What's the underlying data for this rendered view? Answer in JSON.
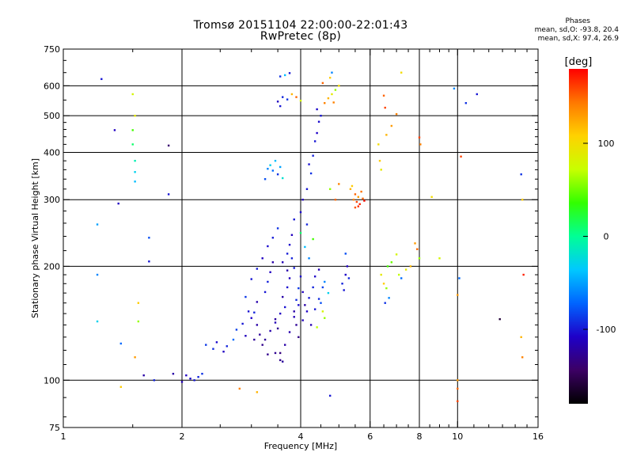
{
  "title_line1": "Tromsø 20151104 22:00:00-22:01:43",
  "title_line2": "RwPretec (8p)",
  "phase_stats": {
    "header": "Phases",
    "line_o": "mean, sd,O: -93.8, 20.4",
    "line_x": "mean, sd,X:  97.4, 26.9"
  },
  "chart_data": {
    "type": "scatter",
    "title": "Tromsø 20151104 22:00:00-22:01:43",
    "subtitle": "RwPretec (8p)",
    "xlabel": "Frequency [MHz]",
    "ylabel": "Stationary phase Virtual Height [km]",
    "xscale": "log",
    "yscale": "log",
    "xlim": [
      1,
      16
    ],
    "ylim": [
      75,
      750
    ],
    "x_ticks": [
      1,
      2,
      4,
      6,
      8,
      10,
      16
    ],
    "y_ticks": [
      75,
      100,
      200,
      300,
      400,
      500,
      600,
      750
    ],
    "grid": true,
    "grid_x": [
      2,
      4,
      6,
      8,
      10
    ],
    "grid_y": [
      100,
      200,
      300,
      400,
      500,
      600
    ],
    "colorbar": {
      "label": "[deg]",
      "range": [
        -180,
        180
      ],
      "ticks": [
        -100,
        0,
        100
      ],
      "colormap": [
        "#000000",
        "#3c0064",
        "#1e00c8",
        "#0064ff",
        "#00c8ff",
        "#00ff96",
        "#32ff00",
        "#c8ff00",
        "#ffd200",
        "#ff7800",
        "#ff0000"
      ]
    },
    "series": [
      {
        "points": [
          [
            2.05,
            103,
            -110
          ],
          [
            2.1,
            101,
            -105
          ],
          [
            2.15,
            100,
            -100
          ],
          [
            2.2,
            102,
            -95
          ],
          [
            1.9,
            104,
            -120
          ],
          [
            2.0,
            99,
            -115
          ],
          [
            2.25,
            104,
            -90
          ],
          [
            2.3,
            124,
            -88
          ],
          [
            2.4,
            121,
            -92
          ],
          [
            2.45,
            126,
            -105
          ],
          [
            2.55,
            119,
            -110
          ],
          [
            2.6,
            123,
            -95
          ],
          [
            2.7,
            128,
            -70
          ],
          [
            2.75,
            136,
            -85
          ],
          [
            2.85,
            141,
            -100
          ],
          [
            2.9,
            131,
            -112
          ],
          [
            3.0,
            146,
            -108
          ],
          [
            3.05,
            151,
            -95
          ],
          [
            3.1,
            161,
            -118
          ],
          [
            3.15,
            132,
            -125
          ],
          [
            3.2,
            124,
            -130
          ],
          [
            3.25,
            171,
            -100
          ],
          [
            3.3,
            182,
            -96
          ],
          [
            3.35,
            193,
            -110
          ],
          [
            3.4,
            205,
            -120
          ],
          [
            3.45,
            142,
            -115
          ],
          [
            3.5,
            137,
            -128
          ],
          [
            3.55,
            118,
            -135
          ],
          [
            3.6,
            112,
            -124
          ],
          [
            3.65,
            156,
            -102
          ],
          [
            3.7,
            216,
            -98
          ],
          [
            3.75,
            228,
            -106
          ],
          [
            3.8,
            242,
            -112
          ],
          [
            3.85,
            152,
            -120
          ],
          [
            3.9,
            163,
            -93
          ],
          [
            3.95,
            175,
            -88
          ],
          [
            4.0,
            188,
            -104
          ],
          [
            4.05,
            171,
            -110
          ],
          [
            4.1,
            158,
            -120
          ],
          [
            4.2,
            165,
            -100
          ],
          [
            4.3,
            176,
            -95
          ],
          [
            4.35,
            188,
            -108
          ],
          [
            4.45,
            196,
            -115
          ],
          [
            4.5,
            160,
            -80
          ],
          [
            3.25,
            128,
            -125
          ],
          [
            3.3,
            117,
            -130
          ],
          [
            3.35,
            135,
            -118
          ],
          [
            3.45,
            145,
            -122
          ],
          [
            3.55,
            150,
            -110
          ],
          [
            3.6,
            166,
            -120
          ],
          [
            3.7,
            176,
            -104
          ],
          [
            3.75,
            186,
            -112
          ],
          [
            3.85,
            198,
            -98
          ],
          [
            3.9,
            140,
            -126
          ],
          [
            3.95,
            130,
            -132
          ],
          [
            3.1,
            140,
            -120
          ],
          [
            3.05,
            128,
            -125
          ],
          [
            2.95,
            152,
            -102
          ],
          [
            2.9,
            166,
            -88
          ],
          [
            3.0,
            185,
            -100
          ],
          [
            3.1,
            197,
            -98
          ],
          [
            3.2,
            210,
            -110
          ],
          [
            3.3,
            226,
            -104
          ],
          [
            3.4,
            238,
            -98
          ],
          [
            3.5,
            252,
            -90
          ],
          [
            3.6,
            205,
            -115
          ],
          [
            3.7,
            195,
            -118
          ],
          [
            3.8,
            210,
            -96
          ],
          [
            3.45,
            118,
            -128
          ],
          [
            3.55,
            113,
            -130
          ],
          [
            3.65,
            124,
            -120
          ],
          [
            3.75,
            134,
            -118
          ],
          [
            3.85,
            147,
            -114
          ],
          [
            3.95,
            158,
            -104
          ],
          [
            4.05,
            144,
            -112
          ],
          [
            4.15,
            152,
            -108
          ],
          [
            4.25,
            140,
            -116
          ],
          [
            4.35,
            154,
            -100
          ],
          [
            4.45,
            164,
            -92
          ],
          [
            4.55,
            176,
            -84
          ],
          [
            4.6,
            182,
            -60
          ],
          [
            4.7,
            170,
            -30
          ],
          [
            4.55,
            152,
            80
          ],
          [
            4.6,
            146,
            60
          ],
          [
            4.4,
            138,
            70
          ],
          [
            5.1,
            180,
            -95
          ],
          [
            5.15,
            173,
            -100
          ],
          [
            5.2,
            190,
            -108
          ],
          [
            5.25,
            200,
            -110
          ],
          [
            5.3,
            186,
            -94
          ],
          [
            5.2,
            216,
            -80
          ],
          [
            4.2,
            210,
            -60
          ],
          [
            4.1,
            225,
            -40
          ],
          [
            4.3,
            236,
            40
          ],
          [
            4.0,
            245,
            10
          ],
          [
            4.15,
            258,
            -95
          ],
          [
            3.85,
            266,
            -100
          ],
          [
            4.0,
            278,
            -105
          ],
          [
            4.05,
            300,
            -110
          ],
          [
            4.15,
            320,
            -100
          ],
          [
            4.25,
            352,
            -90
          ],
          [
            4.2,
            372,
            -102
          ],
          [
            4.3,
            392,
            -96
          ],
          [
            4.35,
            428,
            -100
          ],
          [
            4.4,
            450,
            -108
          ],
          [
            4.45,
            482,
            -104
          ],
          [
            4.5,
            500,
            -100
          ],
          [
            4.4,
            520,
            -106
          ],
          [
            4.6,
            540,
            140
          ],
          [
            4.7,
            556,
            120
          ],
          [
            4.8,
            570,
            90
          ],
          [
            4.9,
            585,
            60
          ],
          [
            5.0,
            600,
            100
          ],
          [
            4.55,
            610,
            150
          ],
          [
            4.75,
            630,
            110
          ],
          [
            4.8,
            650,
            -60
          ],
          [
            3.5,
            545,
            -110
          ],
          [
            3.55,
            530,
            -100
          ],
          [
            3.6,
            560,
            -95
          ],
          [
            3.7,
            552,
            -90
          ],
          [
            3.8,
            570,
            120
          ],
          [
            3.9,
            560,
            150
          ],
          [
            4.0,
            548,
            80
          ],
          [
            3.65,
            640,
            -40
          ],
          [
            3.75,
            648,
            -100
          ],
          [
            3.55,
            635,
            -90
          ],
          [
            4.85,
            542,
            140
          ],
          [
            3.3,
            362,
            -60
          ],
          [
            3.35,
            370,
            -30
          ],
          [
            3.4,
            358,
            -70
          ],
          [
            3.45,
            380,
            -40
          ],
          [
            3.5,
            350,
            -90
          ],
          [
            3.55,
            366,
            -50
          ],
          [
            3.25,
            340,
            -80
          ],
          [
            3.6,
            342,
            -20
          ],
          [
            5.45,
            300,
            140
          ],
          [
            5.5,
            310,
            150
          ],
          [
            5.55,
            296,
            160
          ],
          [
            5.6,
            305,
            130
          ],
          [
            5.65,
            292,
            170
          ],
          [
            5.7,
            315,
            145
          ],
          [
            5.35,
            320,
            120
          ],
          [
            5.4,
            326,
            110
          ],
          [
            5.6,
            288,
            165
          ],
          [
            5.5,
            286,
            155
          ],
          [
            5.75,
            302,
            150
          ],
          [
            5.8,
            298,
            175
          ],
          [
            4.75,
            320,
            60
          ],
          [
            4.9,
            300,
            150
          ],
          [
            5.0,
            330,
            140
          ],
          [
            6.4,
            190,
            90
          ],
          [
            6.5,
            180,
            110
          ],
          [
            6.6,
            175,
            60
          ],
          [
            6.7,
            165,
            -60
          ],
          [
            6.55,
            160,
            -90
          ],
          [
            6.65,
            200,
            40
          ],
          [
            6.8,
            205,
            50
          ],
          [
            7.0,
            215,
            80
          ],
          [
            7.1,
            190,
            70
          ],
          [
            7.2,
            186,
            -70
          ],
          [
            7.4,
            196,
            90
          ],
          [
            7.6,
            200,
            120
          ],
          [
            7.8,
            230,
            130
          ],
          [
            7.9,
            222,
            150
          ],
          [
            8.0,
            210,
            60
          ],
          [
            6.3,
            420,
            100
          ],
          [
            6.35,
            380,
            110
          ],
          [
            6.4,
            360,
            90
          ],
          [
            6.6,
            445,
            120
          ],
          [
            6.8,
            470,
            130
          ],
          [
            7.0,
            505,
            140
          ],
          [
            6.5,
            565,
            150
          ],
          [
            6.55,
            525,
            160
          ],
          [
            7.2,
            650,
            100
          ],
          [
            8.0,
            438,
            160
          ],
          [
            8.05,
            420,
            140
          ],
          [
            1.25,
            625,
            -100
          ],
          [
            1.5,
            570,
            80
          ],
          [
            1.52,
            500,
            90
          ],
          [
            1.5,
            458,
            40
          ],
          [
            1.5,
            420,
            10
          ],
          [
            1.52,
            380,
            -10
          ],
          [
            1.52,
            355,
            -30
          ],
          [
            1.52,
            335,
            -40
          ],
          [
            1.35,
            458,
            -110
          ],
          [
            1.85,
            417,
            -140
          ],
          [
            1.85,
            310,
            -100
          ],
          [
            1.38,
            293,
            -110
          ],
          [
            1.22,
            258,
            -50
          ],
          [
            1.65,
            238,
            -80
          ],
          [
            1.65,
            206,
            -100
          ],
          [
            1.22,
            190,
            -60
          ],
          [
            1.55,
            160,
            110
          ],
          [
            1.22,
            143,
            -30
          ],
          [
            1.55,
            143,
            60
          ],
          [
            1.4,
            125,
            -70
          ],
          [
            1.52,
            115,
            130
          ],
          [
            1.6,
            103,
            -120
          ],
          [
            1.7,
            100,
            -95
          ],
          [
            1.4,
            96,
            110
          ],
          [
            2.8,
            95,
            140
          ],
          [
            3.1,
            93,
            120
          ],
          [
            4.75,
            91,
            -100
          ],
          [
            10.0,
            100,
            130
          ],
          [
            10.0,
            95,
            150
          ],
          [
            10.0,
            88,
            160
          ],
          [
            10.5,
            540,
            -90
          ],
          [
            11.2,
            570,
            -100
          ],
          [
            9.8,
            590,
            -60
          ],
          [
            10.2,
            390,
            160
          ],
          [
            14.5,
            350,
            -90
          ],
          [
            14.6,
            300,
            110
          ],
          [
            14.7,
            190,
            170
          ],
          [
            14.5,
            130,
            120
          ],
          [
            14.6,
            115,
            140
          ],
          [
            12.8,
            145,
            -160
          ],
          [
            10.1,
            186,
            -70
          ],
          [
            10.0,
            168,
            130
          ],
          [
            9.0,
            210,
            80
          ],
          [
            8.6,
            305,
            100
          ]
        ]
      }
    ]
  }
}
